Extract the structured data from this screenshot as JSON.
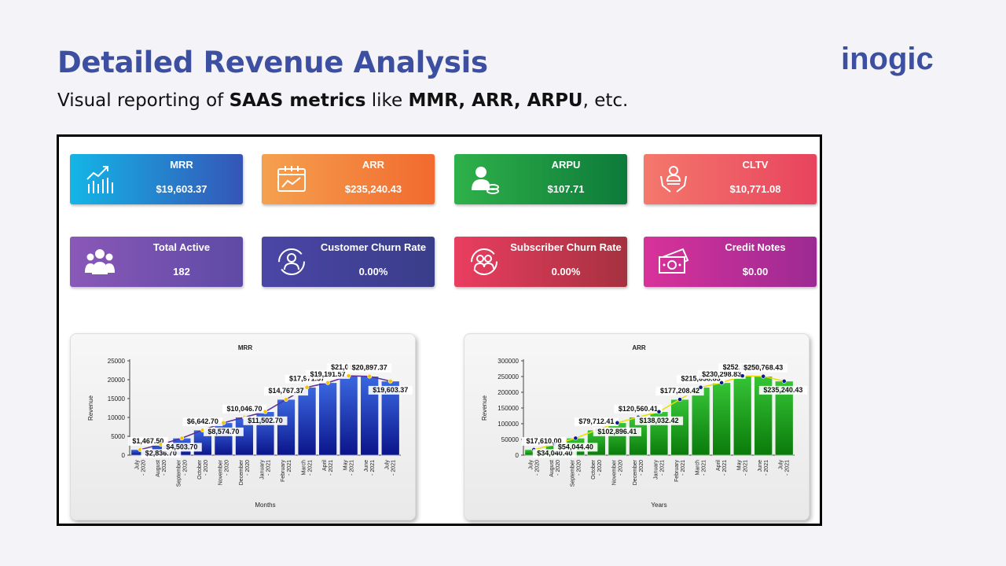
{
  "header": {
    "title": "Detailed Revenue Analysis",
    "subtitle_pre": "Visual reporting of ",
    "subtitle_bold1": "SAAS metrics",
    "subtitle_mid": " like ",
    "subtitle_bold2": "MMR, ARR, ARPU",
    "subtitle_post": ", etc."
  },
  "logo": {
    "text": "inogic",
    "color": "#3c4fa0"
  },
  "cards": [
    {
      "label": "MRR",
      "value": "$19,603.37",
      "icon": "chart-icon",
      "colors": [
        "#14b5e6",
        "#3555b7"
      ]
    },
    {
      "label": "ARR",
      "value": "$235,240.43",
      "icon": "calendar-chart-icon",
      "colors": [
        "#f4a14f",
        "#f26a2e"
      ]
    },
    {
      "label": "ARPU",
      "value": "$107.71",
      "icon": "user-coins-icon",
      "colors": [
        "#2fb14a",
        "#0d7a3a"
      ]
    },
    {
      "label": "CLTV",
      "value": "$10,771.08",
      "icon": "hands-user-icon",
      "colors": [
        "#f4786c",
        "#e8435e"
      ]
    },
    {
      "label": "Total Active",
      "value": "182",
      "icon": "users-icon",
      "colors": [
        "#8a58b8",
        "#5e4aa6"
      ]
    },
    {
      "label": "Customer Churn Rate",
      "value": "0.00%",
      "icon": "user-cycle-icon",
      "colors": [
        "#4a46a6",
        "#3a3d8a"
      ]
    },
    {
      "label": "Subscriber Churn Rate",
      "value": "0.00%",
      "icon": "group-cycle-icon",
      "colors": [
        "#ea3e60",
        "#a5313f"
      ]
    },
    {
      "label": "Credit Notes",
      "value": "$0.00",
      "icon": "money-icon",
      "colors": [
        "#d8329a",
        "#9c2a93"
      ]
    }
  ],
  "chart_data": [
    {
      "type": "bar",
      "title": "MRR",
      "xlabel": "Months",
      "ylabel": "Revenue",
      "ylim": [
        0,
        25000
      ],
      "yticks": [
        "0",
        "5000",
        "10000",
        "15000",
        "20000",
        "25000"
      ],
      "categories": [
        "July - 2020",
        "August - 2020",
        "September - 2020",
        "October - 2020",
        "November - 2020",
        "December - 2020",
        "January - 2021",
        "February - 2021",
        "March - 2021",
        "April - 2021",
        "May - 2021",
        "June - 2021",
        "July - 2021"
      ],
      "values": [
        1467.5,
        2836.7,
        4503.7,
        6642.7,
        8574.7,
        10046.7,
        11502.7,
        14767.37,
        17971.57,
        19191.57,
        21016.57,
        20897.37,
        19603.37
      ],
      "labels": [
        "$1,467.50",
        "$2,836.70",
        "$4,503.70",
        "$6,642.70",
        "$8,574.70",
        "$10,046.70",
        "$11,502.70",
        "$14,767.37",
        "$17,971.57",
        "$19,191.57",
        "$21,016.57",
        "$20,897.37",
        "$19,603.37"
      ],
      "label_pos": [
        "a",
        "b",
        "b",
        "a",
        "b",
        "a",
        "b",
        "a",
        "a",
        "a",
        "a",
        "a",
        "b"
      ],
      "bar_color": [
        "#3a67e0",
        "#0b148a"
      ],
      "line_color": "#5a2f98",
      "point_color": "#f2c400",
      "grid": false
    },
    {
      "type": "bar",
      "title": "ARR",
      "xlabel": "Years",
      "ylabel": "Revenue",
      "ylim": [
        0,
        300000
      ],
      "yticks": [
        "0",
        "50000",
        "100000",
        "150000",
        "200000",
        "250000",
        "300000"
      ],
      "categories": [
        "July - 2020",
        "August - 2020",
        "September - 2020",
        "October - 2020",
        "November - 2020",
        "December - 2020",
        "January - 2021",
        "February - 2021",
        "March - 2021",
        "April - 2021",
        "May - 2021",
        "June - 2021",
        "July - 2021"
      ],
      "values": [
        17610.0,
        34040.4,
        54044.4,
        79712.41,
        102896.41,
        120560.41,
        138032.42,
        177208.42,
        215658.83,
        230298.83,
        252198.83,
        250768.43,
        235240.43
      ],
      "labels": [
        "$17,610.00",
        "$34,040.40",
        "$54,044.40",
        "$79,712.41",
        "$102,896.41",
        "$120,560.41",
        "$138,032.42",
        "$177,208.42",
        "$215,658.83",
        "$230,298.83",
        "$252,198.83",
        "$250,768.43",
        "$235,240.43"
      ],
      "label_pos": [
        "a",
        "b",
        "b",
        "a",
        "b",
        "a",
        "b",
        "a",
        "a",
        "a",
        "a",
        "a",
        "b"
      ],
      "bar_color": [
        "#36c436",
        "#0a7a0a"
      ],
      "line_color": "#e8e000",
      "point_color": "#0a1a8a",
      "grid": false
    }
  ]
}
